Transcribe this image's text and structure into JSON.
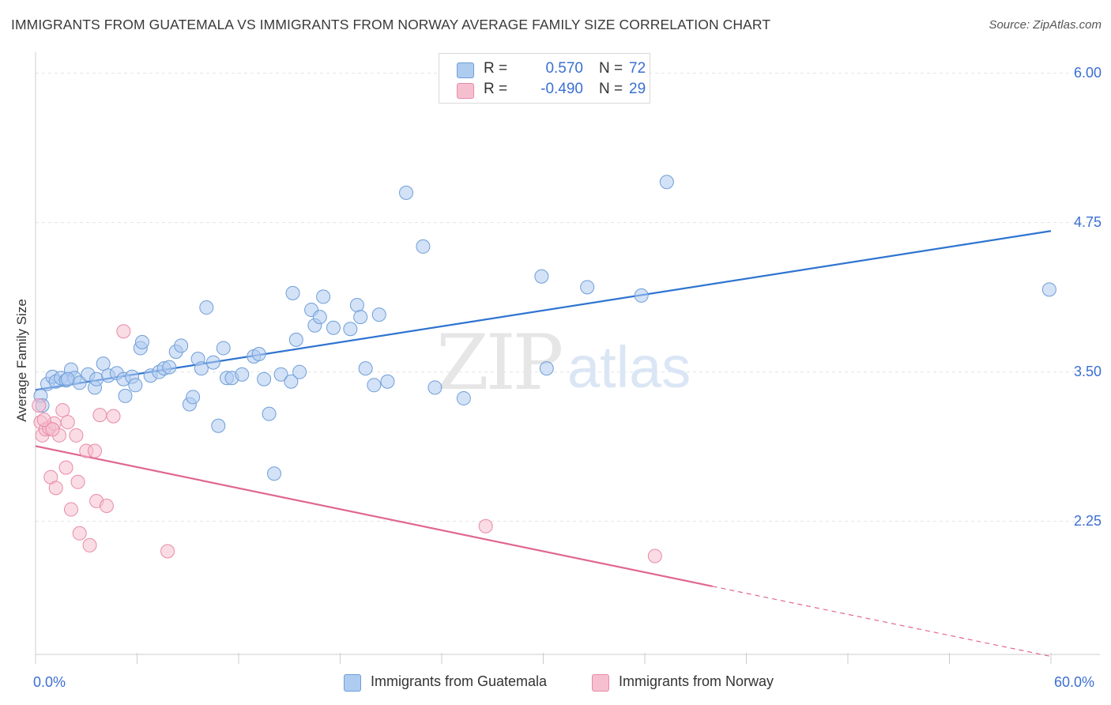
{
  "header": {
    "title": "IMMIGRANTS FROM GUATEMALA VS IMMIGRANTS FROM NORWAY AVERAGE FAMILY SIZE CORRELATION CHART",
    "source": "Source: ZipAtlas.com"
  },
  "legend": {
    "rows": [
      {
        "r_label": "R =",
        "r_value": "0.570",
        "n_label": "N =",
        "n_value": "72"
      },
      {
        "r_label": "R =",
        "r_value": "-0.490",
        "n_label": "N =",
        "n_value": "29"
      }
    ]
  },
  "watermark": {
    "zip": "ZIP",
    "atlas": "atlas"
  },
  "colors": {
    "blue_fill": "#aecbf0",
    "blue_stroke": "#6f9ed8",
    "blue_line": "#2f74d0",
    "pink_fill": "#f6bfd0",
    "pink_stroke": "#e98aa8",
    "pink_line": "#e0678f",
    "tick_text": "#3b6fd4"
  },
  "chart_data": {
    "type": "scatter",
    "title": "IMMIGRANTS FROM GUATEMALA VS IMMIGRANTS FROM NORWAY AVERAGE FAMILY SIZE CORRELATION CHART",
    "xlabel": "",
    "ylabel": "Average Family Size",
    "xlim": [
      0,
      60
    ],
    "ylim": [
      1.15,
      6.15
    ],
    "x_tick_labels": [
      "0.0%",
      "60.0%"
    ],
    "y_ticks": [
      2.25,
      3.5,
      4.75,
      6.0
    ],
    "y_tick_labels": [
      "2.25",
      "3.50",
      "4.75",
      "6.00"
    ],
    "grid": "horizontal dashed",
    "legend_position": "top-center",
    "series": [
      {
        "name": "Immigrants from Guatemala",
        "color": "#aecbf0",
        "trend": {
          "x": [
            0.0,
            60.0
          ],
          "y": [
            3.35,
            4.68
          ],
          "dashed_from": null
        },
        "points": [
          [
            0.3,
            3.3
          ],
          [
            0.4,
            3.22
          ],
          [
            0.7,
            3.4
          ],
          [
            1.0,
            3.46
          ],
          [
            1.2,
            3.42
          ],
          [
            1.5,
            3.45
          ],
          [
            1.8,
            3.43
          ],
          [
            2.1,
            3.52
          ],
          [
            2.3,
            3.45
          ],
          [
            2.6,
            3.41
          ],
          [
            3.1,
            3.48
          ],
          [
            3.5,
            3.37
          ],
          [
            3.6,
            3.44
          ],
          [
            4.0,
            3.57
          ],
          [
            4.3,
            3.47
          ],
          [
            4.8,
            3.49
          ],
          [
            5.2,
            3.44
          ],
          [
            5.3,
            3.3
          ],
          [
            5.7,
            3.46
          ],
          [
            5.9,
            3.39
          ],
          [
            6.2,
            3.7
          ],
          [
            6.3,
            3.75
          ],
          [
            6.8,
            3.47
          ],
          [
            7.3,
            3.5
          ],
          [
            7.6,
            3.53
          ],
          [
            7.9,
            3.54
          ],
          [
            8.3,
            3.67
          ],
          [
            8.6,
            3.72
          ],
          [
            9.1,
            3.23
          ],
          [
            9.3,
            3.29
          ],
          [
            9.6,
            3.61
          ],
          [
            9.8,
            3.53
          ],
          [
            10.1,
            4.04
          ],
          [
            10.5,
            3.58
          ],
          [
            10.8,
            3.05
          ],
          [
            11.1,
            3.7
          ],
          [
            11.3,
            3.45
          ],
          [
            11.6,
            3.45
          ],
          [
            12.2,
            3.48
          ],
          [
            12.9,
            3.63
          ],
          [
            13.2,
            3.65
          ],
          [
            13.5,
            3.44
          ],
          [
            13.8,
            3.15
          ],
          [
            14.1,
            2.65
          ],
          [
            14.5,
            3.48
          ],
          [
            15.1,
            3.42
          ],
          [
            15.2,
            4.16
          ],
          [
            15.4,
            3.77
          ],
          [
            15.6,
            3.5
          ],
          [
            16.3,
            4.02
          ],
          [
            16.5,
            3.89
          ],
          [
            16.8,
            3.96
          ],
          [
            17.0,
            4.13
          ],
          [
            17.6,
            3.87
          ],
          [
            18.6,
            3.86
          ],
          [
            19.0,
            4.06
          ],
          [
            19.2,
            3.96
          ],
          [
            19.5,
            3.53
          ],
          [
            20.0,
            3.39
          ],
          [
            20.3,
            3.98
          ],
          [
            20.8,
            3.42
          ],
          [
            21.9,
            5.0
          ],
          [
            22.9,
            4.55
          ],
          [
            23.6,
            3.37
          ],
          [
            25.3,
            3.28
          ],
          [
            29.9,
            4.3
          ],
          [
            30.2,
            3.53
          ],
          [
            32.6,
            4.21
          ],
          [
            35.8,
            4.14
          ],
          [
            37.3,
            5.09
          ],
          [
            59.9,
            4.19
          ],
          [
            1.9,
            3.44
          ]
        ]
      },
      {
        "name": "Immigrants from Norway",
        "color": "#f6bfd0",
        "trend": {
          "x": [
            0.0,
            60.0
          ],
          "y": [
            2.88,
            1.12
          ],
          "dashed_from": 40.0
        },
        "points": [
          [
            0.2,
            3.22
          ],
          [
            0.3,
            3.08
          ],
          [
            0.4,
            2.97
          ],
          [
            0.6,
            3.02
          ],
          [
            0.8,
            3.03
          ],
          [
            0.9,
            2.62
          ],
          [
            1.1,
            3.07
          ],
          [
            1.2,
            2.53
          ],
          [
            1.4,
            2.97
          ],
          [
            1.6,
            3.18
          ],
          [
            1.8,
            2.7
          ],
          [
            1.9,
            3.08
          ],
          [
            2.1,
            2.35
          ],
          [
            2.4,
            2.97
          ],
          [
            2.5,
            2.58
          ],
          [
            2.6,
            2.15
          ],
          [
            3.0,
            2.84
          ],
          [
            3.2,
            2.05
          ],
          [
            3.5,
            2.84
          ],
          [
            3.6,
            2.42
          ],
          [
            3.8,
            3.14
          ],
          [
            4.2,
            2.38
          ],
          [
            4.6,
            3.13
          ],
          [
            5.2,
            3.84
          ],
          [
            7.8,
            2.0
          ],
          [
            26.6,
            2.21
          ],
          [
            36.6,
            1.96
          ],
          [
            0.5,
            3.1
          ],
          [
            1.0,
            3.02
          ]
        ]
      }
    ]
  }
}
